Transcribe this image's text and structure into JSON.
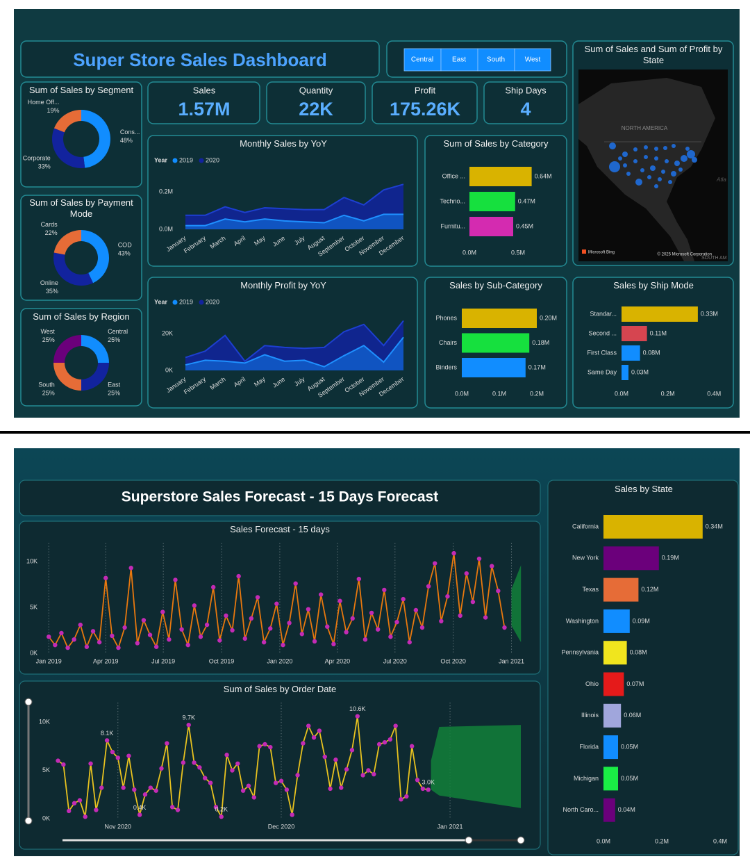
{
  "dashboard": {
    "title": "Super Store Sales Dashboard",
    "slicer": [
      "Central",
      "East",
      "South",
      "West"
    ],
    "kpis": [
      {
        "label": "Sales",
        "value": "1.57M"
      },
      {
        "label": "Quantity",
        "value": "22K"
      },
      {
        "label": "Profit",
        "value": "175.26K"
      },
      {
        "label": "Ship Days",
        "value": "4"
      }
    ]
  },
  "map": {
    "title": "Sum of Sales and Sum of Profit by State",
    "labels": [
      "NORTH AMERICA",
      "Atla",
      "SOUTH AM"
    ],
    "credits": [
      "Microsoft Bing",
      "© 2025 Microsoft Corporation"
    ]
  },
  "forecast_page": {
    "title": "Superstore Sales Forecast - 15 Days Forecast"
  },
  "chart_data": [
    {
      "type": "donut",
      "title": "Sum of Sales by Segment",
      "categories": [
        "Cons...",
        "Corporate",
        "Home Off..."
      ],
      "values": [
        48,
        33,
        19
      ],
      "value_labels": [
        "48%",
        "33%",
        "19%"
      ],
      "colors": [
        "#118dff",
        "#12239e",
        "#e66c37"
      ]
    },
    {
      "type": "donut",
      "title": "Sum of Sales by Payment Mode",
      "categories": [
        "COD",
        "Online",
        "Cards"
      ],
      "values": [
        43,
        35,
        22
      ],
      "value_labels": [
        "43%",
        "35%",
        "22%"
      ],
      "colors": [
        "#118dff",
        "#12239e",
        "#e66c37"
      ]
    },
    {
      "type": "donut",
      "title": "Sum of Sales by Region",
      "categories": [
        "Central",
        "East",
        "South",
        "West"
      ],
      "values": [
        25,
        25,
        25,
        25
      ],
      "value_labels": [
        "25%",
        "25%",
        "25%",
        "25%"
      ],
      "colors": [
        "#118dff",
        "#12239e",
        "#e66c37",
        "#6b007b"
      ]
    },
    {
      "type": "area",
      "title": "Monthly Sales by YoY",
      "legend_title": "Year",
      "categories": [
        "January",
        "February",
        "March",
        "April",
        "May",
        "June",
        "July",
        "August",
        "September",
        "October",
        "November",
        "December"
      ],
      "series": [
        {
          "name": "2019",
          "color": "#118dff",
          "values": [
            0.02,
            0.02,
            0.055,
            0.04,
            0.055,
            0.045,
            0.04,
            0.035,
            0.075,
            0.045,
            0.08,
            0.08
          ]
        },
        {
          "name": "2020",
          "color": "#12239e",
          "values": [
            0.075,
            0.075,
            0.12,
            0.09,
            0.115,
            0.11,
            0.105,
            0.105,
            0.17,
            0.13,
            0.21,
            0.24
          ]
        }
      ],
      "ylim": [
        0,
        0.26
      ],
      "yticks": [
        {
          "value": 0,
          "label": "0.0M"
        },
        {
          "value": 0.2,
          "label": "0.2M"
        }
      ]
    },
    {
      "type": "area",
      "title": "Monthly Profit by YoY",
      "legend_title": "Year",
      "categories": [
        "January",
        "February",
        "March",
        "April",
        "May",
        "June",
        "July",
        "August",
        "September",
        "October",
        "November",
        "December"
      ],
      "series": [
        {
          "name": "2019",
          "color": "#118dff",
          "values": [
            3000,
            5500,
            5000,
            4000,
            8500,
            5000,
            5500,
            2000,
            8000,
            13500,
            4500,
            18000
          ]
        },
        {
          "name": "2020",
          "color": "#12239e",
          "values": [
            7000,
            10500,
            19000,
            5000,
            13500,
            12500,
            12000,
            12500,
            21000,
            25000,
            13500,
            27000
          ]
        }
      ],
      "ylim": [
        0,
        30000
      ],
      "yticks": [
        {
          "value": 0,
          "label": "0K"
        },
        {
          "value": 20000,
          "label": "20K"
        }
      ]
    },
    {
      "type": "hbar",
      "title": "Sum of Sales by Category",
      "categories": [
        "Office ...",
        "Techno...",
        "Furnitu..."
      ],
      "values": [
        0.64,
        0.47,
        0.45
      ],
      "value_labels": [
        "0.64M",
        "0.47M",
        "0.45M"
      ],
      "colors": [
        "#d9b300",
        "#16e03e",
        "#d42bb0"
      ],
      "xlim": [
        0,
        0.7
      ],
      "xticks": [
        {
          "value": 0,
          "label": "0.0M"
        },
        {
          "value": 0.5,
          "label": "0.5M"
        }
      ]
    },
    {
      "type": "hbar",
      "title": "Sales by Sub-Category",
      "categories": [
        "Phones",
        "Chairs",
        "Binders"
      ],
      "values": [
        0.2,
        0.18,
        0.17
      ],
      "value_labels": [
        "0.20M",
        "0.18M",
        "0.17M"
      ],
      "colors": [
        "#d9b300",
        "#16e03e",
        "#118dff"
      ],
      "xlim": [
        0,
        0.22
      ],
      "xticks": [
        {
          "value": 0,
          "label": "0.0M"
        },
        {
          "value": 0.1,
          "label": "0.1M"
        },
        {
          "value": 0.2,
          "label": "0.2M"
        }
      ]
    },
    {
      "type": "hbar",
      "title": "Sales by Ship Mode",
      "categories": [
        "Standar...",
        "Second ...",
        "First Class",
        "Same Day"
      ],
      "values": [
        0.33,
        0.11,
        0.08,
        0.03
      ],
      "value_labels": [
        "0.33M",
        "0.11M",
        "0.08M",
        "0.03M"
      ],
      "colors": [
        "#d9b300",
        "#d64550",
        "#118dff",
        "#118dff"
      ],
      "xlim": [
        0,
        0.45
      ],
      "xticks": [
        {
          "value": 0,
          "label": "0.0M"
        },
        {
          "value": 0.2,
          "label": "0.2M"
        },
        {
          "value": 0.4,
          "label": "0.4M"
        }
      ]
    },
    {
      "type": "line",
      "title": "Sales Forecast - 15 days",
      "color": "#e8780e",
      "marker_color": "#c32bb5",
      "xgrid": true,
      "x": [
        0,
        10,
        20,
        30,
        40,
        50,
        60,
        70,
        80,
        90,
        100,
        110,
        120,
        130,
        140,
        150,
        160,
        170,
        180,
        190,
        200,
        210,
        220,
        230,
        240,
        250,
        260,
        270,
        280,
        290,
        300,
        310,
        320,
        330,
        340,
        350,
        360,
        370,
        380,
        390,
        400,
        410,
        420,
        430,
        440,
        450,
        460,
        470,
        480,
        490,
        500,
        510,
        520,
        530,
        540,
        550,
        560,
        570,
        580,
        590,
        600,
        610,
        620,
        630,
        640,
        650,
        660,
        670,
        680,
        690,
        700,
        710,
        720
      ],
      "values": [
        1800,
        900,
        2200,
        600,
        1500,
        3100,
        700,
        2400,
        1200,
        8200,
        1900,
        600,
        2800,
        9300,
        1100,
        3600,
        2000,
        700,
        4500,
        1500,
        8000,
        2600,
        900,
        5200,
        1800,
        3100,
        7200,
        1400,
        4100,
        2500,
        8400,
        1600,
        3800,
        6100,
        1200,
        2700,
        5400,
        900,
        3300,
        7600,
        2100,
        4800,
        1300,
        6400,
        2900,
        1000,
        5700,
        2300,
        3800,
        8100,
        1500,
        4400,
        2600,
        6900,
        1800,
        3400,
        5900,
        1200,
        4700,
        2800,
        7300,
        9800,
        3500,
        6200,
        10900,
        4100,
        8700,
        5600,
        10300,
        3900,
        9500,
        6800,
        2800
      ],
      "forecast": {
        "color": "#12803a",
        "x": [
          731,
          746
        ],
        "upper": [
          7000,
          9600
        ],
        "lower": [
          3000,
          1200
        ]
      },
      "xlim": [
        -9,
        748
      ],
      "xticks": [
        {
          "value": 0,
          "label": "Jan 2019"
        },
        {
          "value": 90,
          "label": "Apr 2019"
        },
        {
          "value": 181,
          "label": "Jul 2019"
        },
        {
          "value": 273,
          "label": "Oct 2019"
        },
        {
          "value": 365,
          "label": "Jan 2020"
        },
        {
          "value": 456,
          "label": "Apr 2020"
        },
        {
          "value": 547,
          "label": "Jul 2020"
        },
        {
          "value": 639,
          "label": "Oct 2020"
        },
        {
          "value": 731,
          "label": "Jan 2021"
        }
      ],
      "ylim": [
        0,
        12000
      ],
      "yticks": [
        {
          "value": 0,
          "label": "0K"
        },
        {
          "value": 5000,
          "label": "5K"
        },
        {
          "value": 10000,
          "label": "10K"
        }
      ]
    },
    {
      "type": "line",
      "title": "Sum of Sales by Order Date",
      "color": "#e8c21f",
      "marker_color": "#c32bb5",
      "xgrid": true,
      "x": [
        0,
        1,
        2,
        3,
        4,
        5,
        6,
        7,
        8,
        9,
        10,
        11,
        12,
        13,
        14,
        15,
        16,
        17,
        18,
        19,
        20,
        21,
        22,
        23,
        24,
        25,
        26,
        27,
        28,
        29,
        30,
        31,
        32,
        33,
        34,
        35,
        36,
        37,
        38,
        39,
        40,
        41,
        42,
        43,
        44,
        45,
        46,
        47,
        48,
        49,
        50,
        51,
        52,
        53,
        54,
        55,
        56,
        57,
        58,
        59,
        60,
        61,
        62,
        63,
        64,
        65,
        66,
        67,
        68
      ],
      "values": [
        6000,
        5600,
        800,
        1600,
        1900,
        200,
        5700,
        900,
        3200,
        8100,
        6900,
        6300,
        3200,
        6500,
        3000,
        400,
        2500,
        3200,
        2900,
        5200,
        7800,
        1200,
        900,
        5800,
        9700,
        5800,
        5300,
        4200,
        3700,
        1200,
        200,
        6600,
        5000,
        5700,
        2900,
        3400,
        2200,
        7500,
        7700,
        7400,
        3700,
        3900,
        3000,
        400,
        4500,
        7800,
        9600,
        8400,
        9100,
        6400,
        3100,
        6100,
        3200,
        5100,
        7100,
        10600,
        4500,
        5000,
        4600,
        7700,
        7900,
        8200,
        9600,
        2000,
        2300,
        7500,
        4000,
        3100,
        3000
      ],
      "value_labels": [
        null,
        null,
        null,
        null,
        null,
        null,
        null,
        null,
        null,
        "8.1K",
        null,
        null,
        null,
        null,
        null,
        "0.4K",
        null,
        null,
        null,
        null,
        null,
        null,
        null,
        null,
        "9.7K",
        null,
        null,
        null,
        null,
        null,
        "0.2K",
        null,
        null,
        null,
        null,
        null,
        null,
        null,
        null,
        null,
        null,
        null,
        null,
        null,
        null,
        null,
        null,
        null,
        null,
        null,
        null,
        null,
        null,
        null,
        null,
        "10.6K",
        null,
        null,
        null,
        null,
        null,
        null,
        null,
        null,
        null,
        null,
        null,
        null,
        "3.0K"
      ],
      "forecast": {
        "color": "#12803a",
        "x": [
          68.5,
          70,
          85
        ],
        "upper": [
          6000,
          9500,
          9700
        ],
        "lower": [
          3000,
          2400,
          1100
        ]
      },
      "xlim": [
        -3,
        85
      ],
      "xticks": [
        {
          "value": 11,
          "label": "Nov 2020"
        },
        {
          "value": 41,
          "label": "Dec 2020"
        },
        {
          "value": 72,
          "label": "Jan 2021"
        }
      ],
      "ylim": [
        0,
        12000
      ],
      "yticks": [
        {
          "value": 0,
          "label": "0K"
        },
        {
          "value": 5000,
          "label": "5K"
        },
        {
          "value": 10000,
          "label": "10K"
        }
      ]
    },
    {
      "type": "hbar",
      "title": "Sales by State",
      "categories": [
        "California",
        "New York",
        "Texas",
        "Washington",
        "Pennsylvania",
        "Ohio",
        "Illinois",
        "Florida",
        "Michigan",
        "North Caro..."
      ],
      "values": [
        0.34,
        0.19,
        0.12,
        0.09,
        0.08,
        0.07,
        0.06,
        0.05,
        0.05,
        0.04
      ],
      "value_labels": [
        "0.34M",
        "0.19M",
        "0.12M",
        "0.09M",
        "0.08M",
        "0.07M",
        "0.06M",
        "0.05M",
        "0.05M",
        "0.04M"
      ],
      "colors": [
        "#d9b300",
        "#6b007b",
        "#e66c37",
        "#118dff",
        "#f0e51e",
        "#e51a1a",
        "#a0a6dc",
        "#118dff",
        "#1aed45",
        "#6b007b"
      ],
      "xlim": [
        0,
        0.42
      ],
      "xticks": [
        {
          "value": 0,
          "label": "0.0M"
        },
        {
          "value": 0.2,
          "label": "0.2M"
        },
        {
          "value": 0.4,
          "label": "0.4M"
        }
      ]
    }
  ]
}
